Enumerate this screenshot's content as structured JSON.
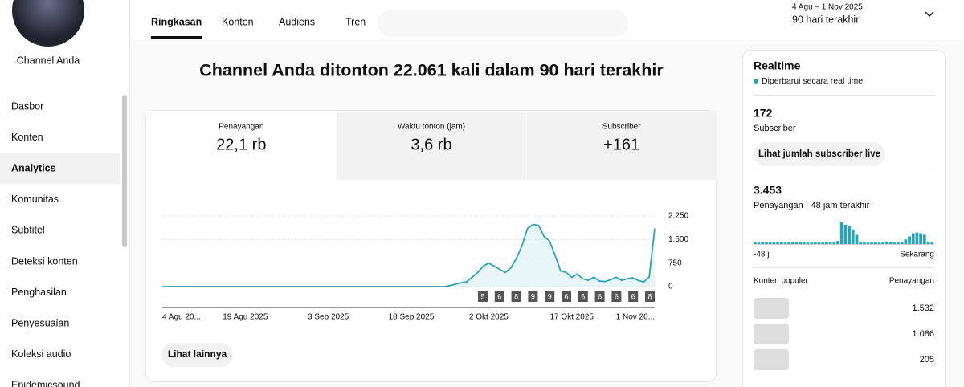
{
  "sidebar": {
    "channel_name": "Channel Anda",
    "menu": [
      "Dasbor",
      "Konten",
      "Analytics",
      "Komunitas",
      "Subtitel",
      "Deteksi konten",
      "Penghasilan",
      "Penyesuaian",
      "Koleksi audio",
      "Epidemicsound"
    ],
    "active": 2
  },
  "tabs": [
    "Ringkasan",
    "Konten",
    "Audiens",
    "Tren"
  ],
  "active_tab": 0,
  "date_range": {
    "range": "4 Agu – 1 Nov 2025",
    "label": "90 hari terakhir"
  },
  "headline": "Channel Anda ditonton 22.061 kali dalam 90 hari terakhir",
  "metrics": [
    {
      "label": "Penayangan",
      "value": "22,1 rb"
    },
    {
      "label": "Waktu tonton (jam)",
      "value": "3,6 rb"
    },
    {
      "label": "Subscriber",
      "value": "+161"
    }
  ],
  "active_metric": 0,
  "chart_data": {
    "type": "line",
    "color": "#2ba3b7",
    "categories": [
      "4 Agu 20...",
      null,
      null,
      null,
      null,
      null,
      null,
      null,
      null,
      null,
      null,
      null,
      null,
      null,
      null,
      "19 Agu 2025",
      null,
      null,
      null,
      null,
      null,
      null,
      null,
      null,
      null,
      null,
      null,
      null,
      null,
      null,
      "3 Sep 2025",
      null,
      null,
      null,
      null,
      null,
      null,
      null,
      null,
      null,
      null,
      null,
      null,
      null,
      null,
      "18 Sep 2025",
      null,
      null,
      null,
      null,
      null,
      null,
      null,
      null,
      null,
      null,
      null,
      null,
      null,
      "2 Okt 2025",
      null,
      null,
      null,
      null,
      null,
      null,
      null,
      null,
      null,
      null,
      null,
      null,
      null,
      null,
      "17 Okt 2025",
      null,
      null,
      null,
      null,
      null,
      null,
      null,
      null,
      null,
      null,
      null,
      null,
      null,
      null,
      "1 Nov 20..."
    ],
    "values": [
      0,
      0,
      0,
      0,
      0,
      0,
      0,
      0,
      0,
      0,
      0,
      0,
      0,
      0,
      0,
      0,
      0,
      0,
      0,
      0,
      0,
      0,
      0,
      0,
      0,
      0,
      0,
      0,
      0,
      0,
      0,
      0,
      0,
      0,
      0,
      0,
      0,
      0,
      0,
      0,
      0,
      0,
      0,
      0,
      0,
      0,
      0,
      0,
      0,
      0,
      0,
      0,
      30,
      80,
      120,
      150,
      300,
      450,
      650,
      750,
      650,
      550,
      450,
      600,
      900,
      1300,
      1850,
      1980,
      1950,
      1600,
      1450,
      1000,
      500,
      450,
      300,
      400,
      250,
      200,
      300,
      180,
      160,
      220,
      300,
      200,
      250,
      280,
      200,
      150,
      300,
      1850
    ],
    "ylim": [
      0,
      2250
    ],
    "yticks": [
      0,
      750,
      {
        "value": 1500,
        "label": "1.500"
      },
      {
        "value": 2250,
        "label": "2.250"
      }
    ],
    "markers": [
      "5",
      "6",
      "8",
      "9",
      "9",
      "6",
      "6",
      "6",
      "6",
      "6",
      "8"
    ]
  },
  "more_button": "Lihat lainnya",
  "realtime": {
    "title": "Realtime",
    "status": "Diperbarui secara real time",
    "subscribers": {
      "value": "172",
      "label": "Subscriber",
      "button": "Lihat jumlah subscriber live"
    },
    "views": {
      "value": "3.453",
      "label": "Penayangan · 48 jam terakhir"
    },
    "chart_data": {
      "type": "bar",
      "color": "#2ba3b7",
      "values": [
        20,
        18,
        22,
        20,
        19,
        21,
        20,
        22,
        18,
        20,
        21,
        19,
        20,
        22,
        20,
        18,
        21,
        20,
        19,
        22,
        20,
        21,
        40,
        280,
        250,
        240,
        190,
        120,
        20,
        22,
        18,
        20,
        21,
        19,
        30,
        20,
        22,
        19,
        20,
        21,
        60,
        100,
        140,
        150,
        140,
        120,
        30,
        20
      ],
      "x_start": "-48 j",
      "x_end": "Sekarang"
    },
    "popular": {
      "title": "Konten populer",
      "column": "Penayangan",
      "rows": [
        "1.532",
        "1.086",
        "205"
      ]
    }
  }
}
